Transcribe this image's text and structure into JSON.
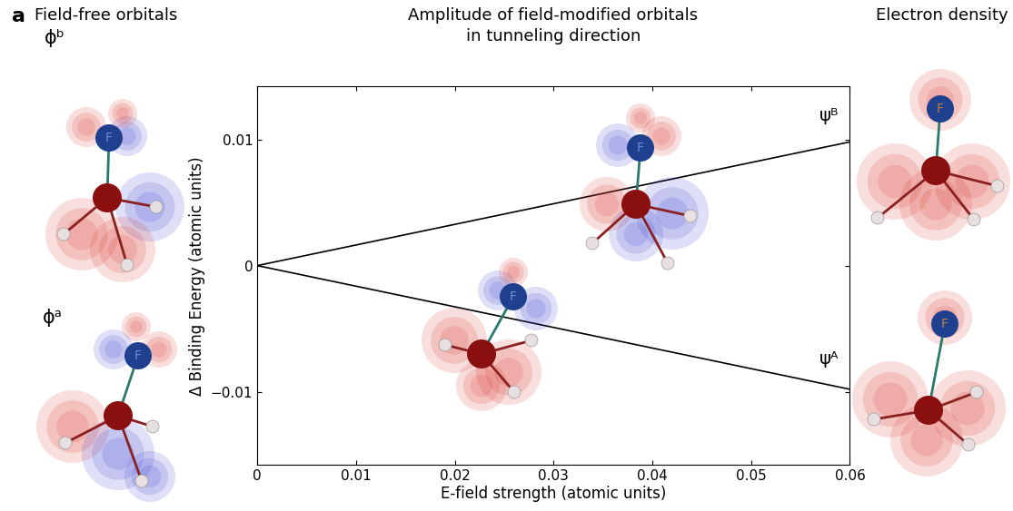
{
  "panel_label": "a",
  "left_title": "Field-free orbitals",
  "right_title": "Electron density",
  "orbital_labels": [
    "ϕᵇ",
    "ϕᵃ"
  ],
  "atom_label": "F",
  "chart_data": {
    "type": "line",
    "title": "Amplitude of field-modified orbitals\nin tunneling direction",
    "x_label": "E-field strength (atomic units)",
    "y_label": "Δ Binding Energy (atomic units)",
    "x": [
      0,
      0.06
    ],
    "series": [
      {
        "name": "ψᴮ",
        "color": "#000000",
        "values": [
          0,
          0.0098
        ]
      },
      {
        "name": "ψᴬ",
        "color": "#000000",
        "values": [
          0,
          -0.0098
        ]
      }
    ],
    "xlim": [
      0,
      0.06
    ],
    "xticks": [
      0,
      0.01,
      0.02,
      0.03,
      0.04,
      0.05,
      0.06
    ],
    "ylim": [
      -0.0158,
      0.0142
    ],
    "yticks": [
      {
        "value": -0.01,
        "label": "−0.01"
      },
      0,
      0.01
    ],
    "grid": false
  }
}
